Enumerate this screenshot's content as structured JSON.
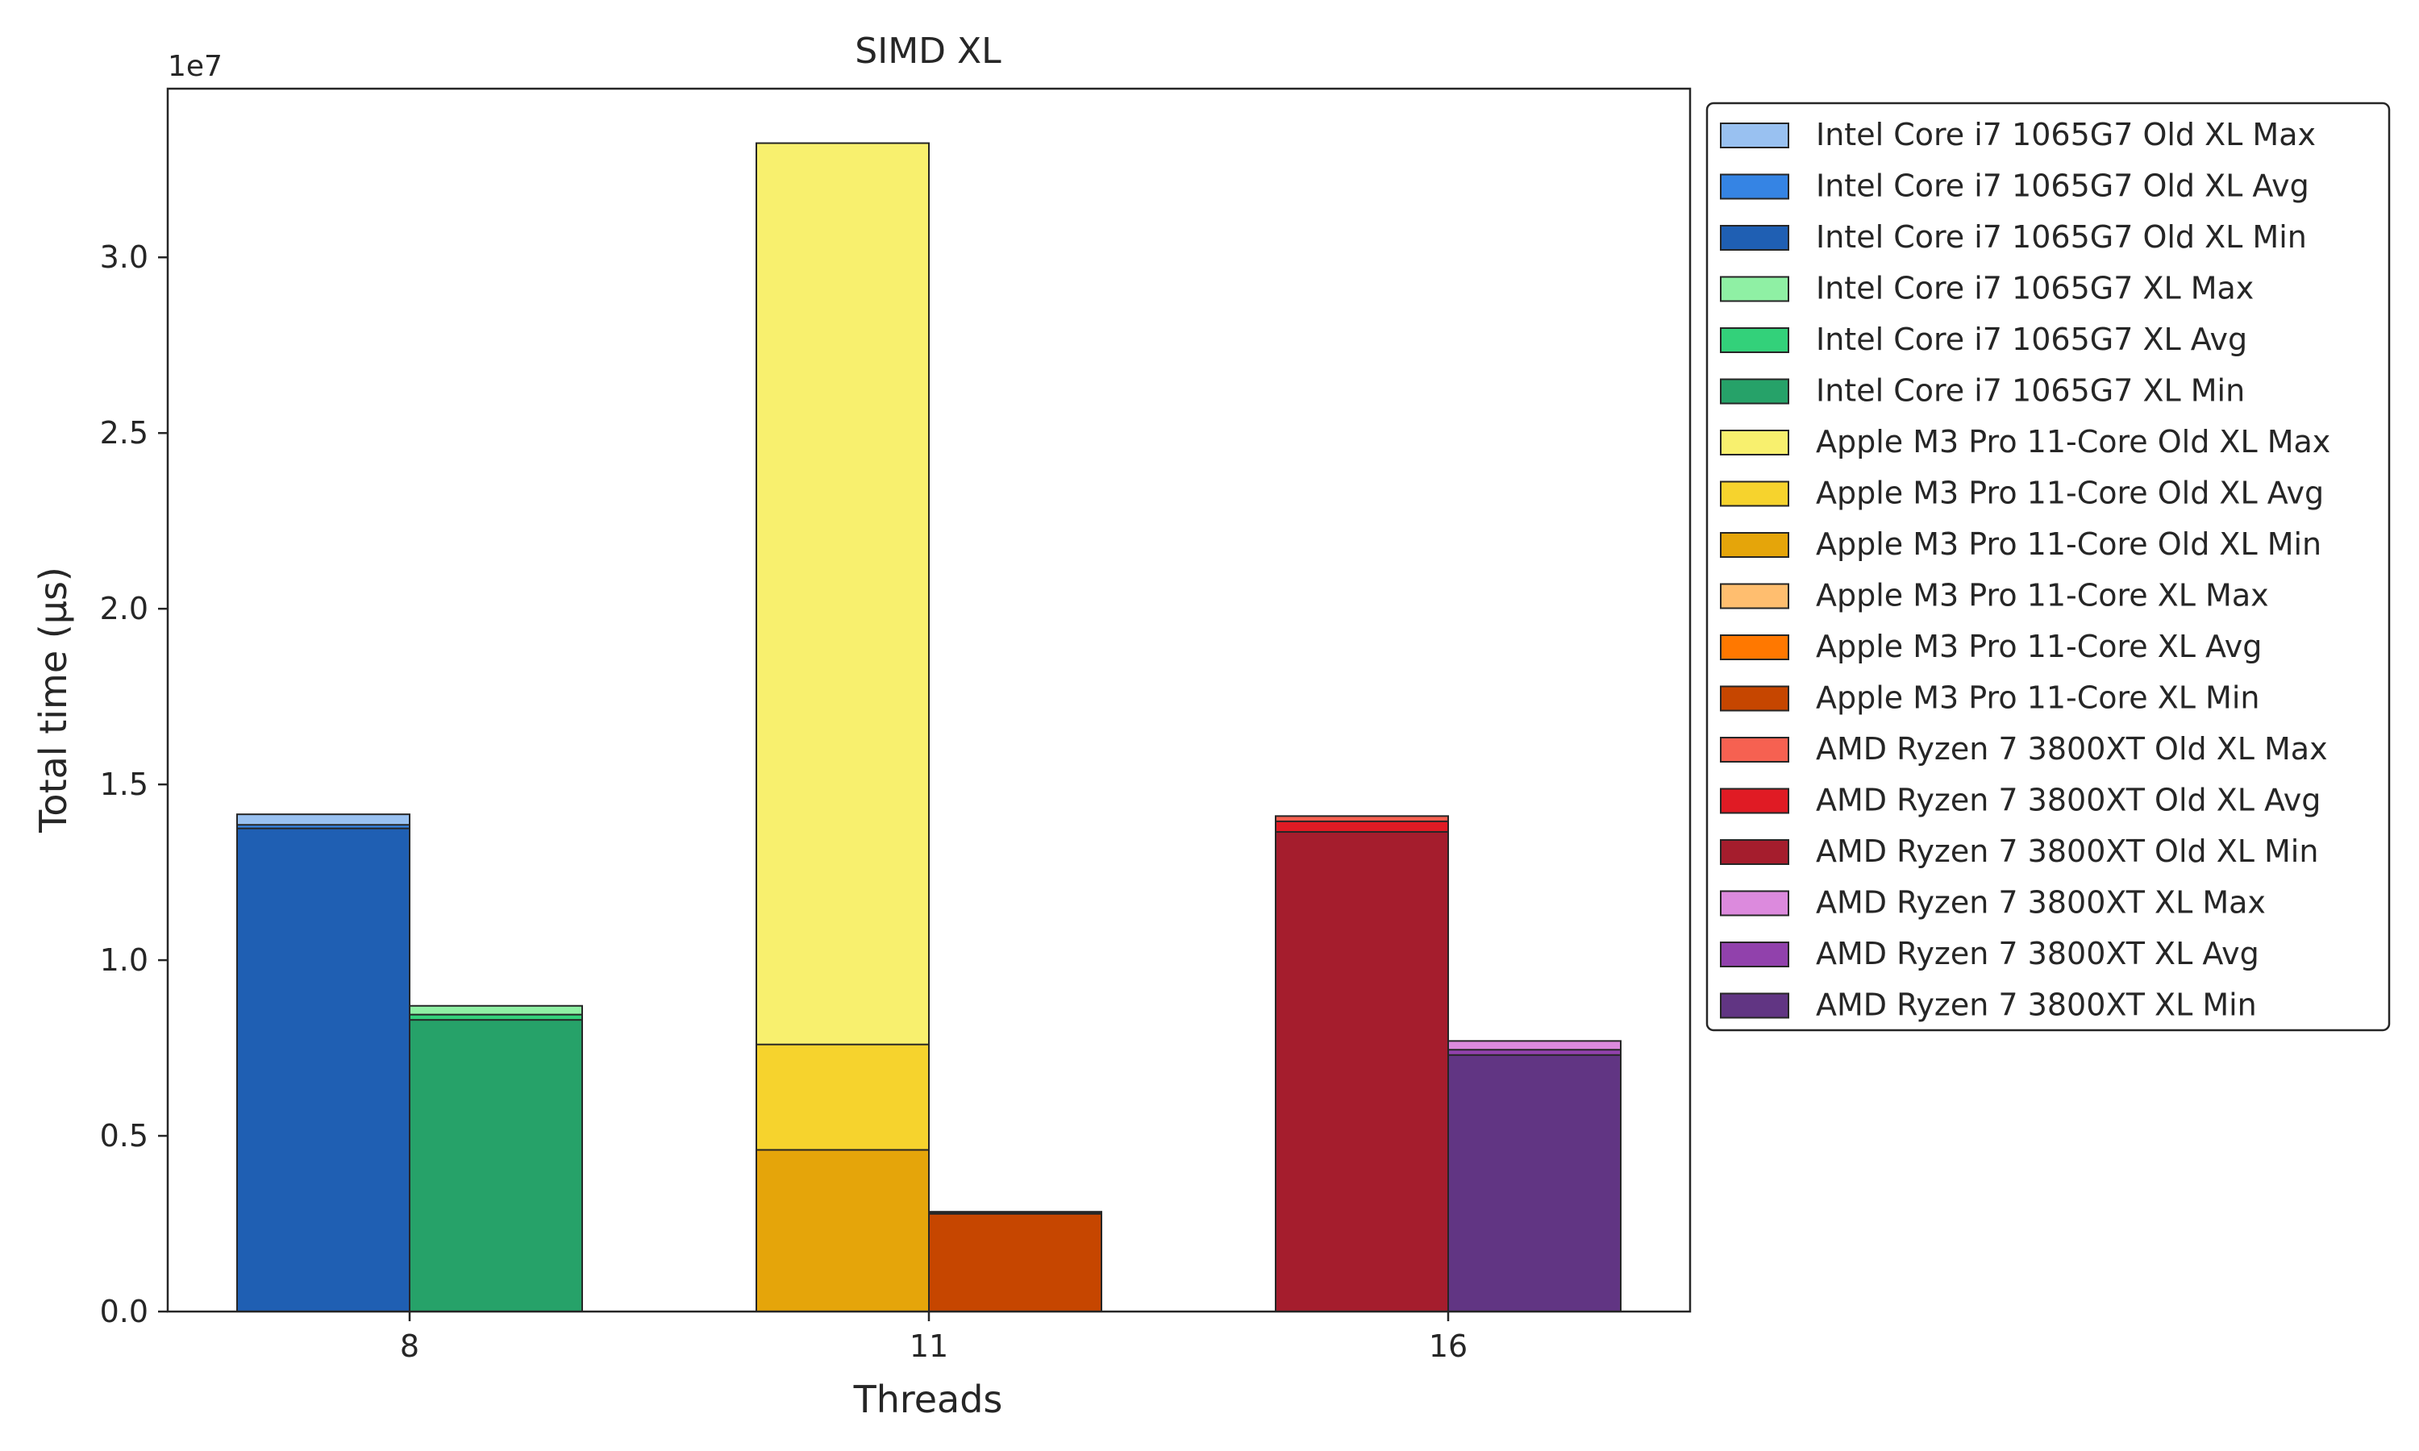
{
  "chart_data": {
    "type": "bar",
    "title": "SIMD XL",
    "xlabel": "Threads",
    "ylabel": "Total time (µs)",
    "y_scale_label": "1e7",
    "ylim": [
      0,
      34800000
    ],
    "yticks": [
      0,
      5000000,
      10000000,
      15000000,
      20000000,
      25000000,
      30000000
    ],
    "ytick_labels": [
      "0.0",
      "0.5",
      "1.0",
      "1.5",
      "2.0",
      "2.5",
      "3.0"
    ],
    "categories": [
      "8",
      "11",
      "16"
    ],
    "grid": false,
    "legend_position": "outside-right",
    "groups": [
      {
        "category": "8",
        "series": [
          {
            "name": "Intel Core i7 1065G7 Old XL Min",
            "value": 13750000,
            "color": "#1f5fb3"
          },
          {
            "name": "Intel Core i7 1065G7 Old XL Avg",
            "value": 13850000,
            "color": "#3584e4"
          },
          {
            "name": "Intel Core i7 1065G7 Old XL Max",
            "value": 14150000,
            "color": "#99c1f1"
          }
        ]
      },
      {
        "category": "8",
        "series": [
          {
            "name": "Intel Core i7 1065G7 XL Min",
            "value": 8300000,
            "color": "#26a269"
          },
          {
            "name": "Intel Core i7 1065G7 XL Avg",
            "value": 8450000,
            "color": "#33d17a"
          },
          {
            "name": "Intel Core i7 1065G7 XL Max",
            "value": 8700000,
            "color": "#8ff0a4"
          }
        ]
      },
      {
        "category": "11",
        "series": [
          {
            "name": "Apple M3 Pro 11-Core Old XL Min",
            "value": 4600000,
            "color": "#e5a50a"
          },
          {
            "name": "Apple M3 Pro 11-Core Old XL Avg",
            "value": 7600000,
            "color": "#f6d32d"
          },
          {
            "name": "Apple M3 Pro 11-Core Old XL Max",
            "value": 33250000,
            "color": "#f8f06e"
          }
        ]
      },
      {
        "category": "11",
        "series": [
          {
            "name": "Apple M3 Pro 11-Core XL Min",
            "value": 2780000,
            "color": "#c64600"
          },
          {
            "name": "Apple M3 Pro 11-Core XL Avg",
            "value": 2810000,
            "color": "#ff7800"
          },
          {
            "name": "Apple M3 Pro 11-Core XL Max",
            "value": 2840000,
            "color": "#ffbe6f"
          }
        ]
      },
      {
        "category": "16",
        "series": [
          {
            "name": "AMD Ryzen 7 3800XT Old XL Min",
            "value": 13650000,
            "color": "#a51d2d"
          },
          {
            "name": "AMD Ryzen 7 3800XT Old XL Avg",
            "value": 13950000,
            "color": "#e01b24"
          },
          {
            "name": "AMD Ryzen 7 3800XT Old XL Max",
            "value": 14100000,
            "color": "#f66151"
          }
        ]
      },
      {
        "category": "16",
        "series": [
          {
            "name": "AMD Ryzen 7 3800XT XL Min",
            "value": 7300000,
            "color": "#613583"
          },
          {
            "name": "AMD Ryzen 7 3800XT XL Avg",
            "value": 7450000,
            "color": "#9141ac"
          },
          {
            "name": "AMD Ryzen 7 3800XT XL Max",
            "value": 7700000,
            "color": "#dc8add"
          }
        ]
      }
    ],
    "legend": [
      {
        "name": "Intel Core i7 1065G7 Old XL Max",
        "color": "#99c1f1"
      },
      {
        "name": "Intel Core i7 1065G7 Old XL Avg",
        "color": "#3584e4"
      },
      {
        "name": "Intel Core i7 1065G7 Old XL Min",
        "color": "#1f5fb3"
      },
      {
        "name": "Intel Core i7 1065G7 XL Max",
        "color": "#8ff0a4"
      },
      {
        "name": "Intel Core i7 1065G7 XL Avg",
        "color": "#33d17a"
      },
      {
        "name": "Intel Core i7 1065G7 XL Min",
        "color": "#26a269"
      },
      {
        "name": "Apple M3 Pro 11-Core Old XL Max",
        "color": "#f8f06e"
      },
      {
        "name": "Apple M3 Pro 11-Core Old XL Avg",
        "color": "#f6d32d"
      },
      {
        "name": "Apple M3 Pro 11-Core Old XL Min",
        "color": "#e5a50a"
      },
      {
        "name": "Apple M3 Pro 11-Core XL Max",
        "color": "#ffbe6f"
      },
      {
        "name": "Apple M3 Pro 11-Core XL Avg",
        "color": "#ff7800"
      },
      {
        "name": "Apple M3 Pro 11-Core XL Min",
        "color": "#c64600"
      },
      {
        "name": "AMD Ryzen 7 3800XT Old XL Max",
        "color": "#f66151"
      },
      {
        "name": "AMD Ryzen 7 3800XT Old XL Avg",
        "color": "#e01b24"
      },
      {
        "name": "AMD Ryzen 7 3800XT Old XL Min",
        "color": "#a51d2d"
      },
      {
        "name": "AMD Ryzen 7 3800XT XL Max",
        "color": "#dc8add"
      },
      {
        "name": "AMD Ryzen 7 3800XT XL Avg",
        "color": "#9141ac"
      },
      {
        "name": "AMD Ryzen 7 3800XT XL Min",
        "color": "#613583"
      }
    ]
  }
}
